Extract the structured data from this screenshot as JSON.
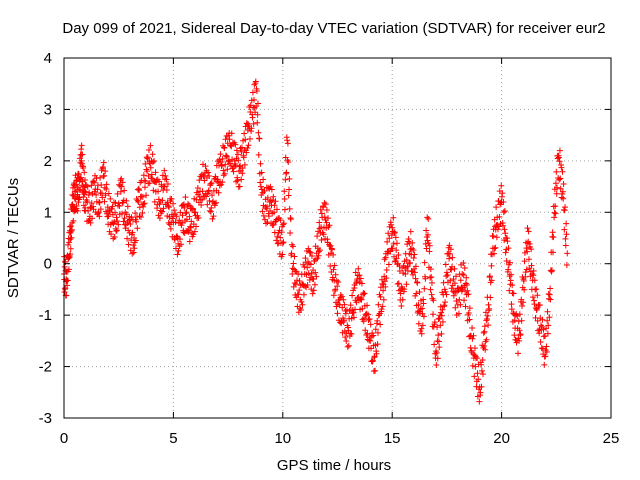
{
  "chart_data": {
    "type": "scatter",
    "title": "Day 099 of 2021, Sidereal Day-to-day VTEC variation (SDTVAR) for receiver eur2",
    "xlabel": "GPS time / hours",
    "ylabel": "SDTVAR / TECUs",
    "xlim": [
      0,
      25
    ],
    "ylim": [
      -3,
      4
    ],
    "xticks": [
      0,
      5,
      10,
      15,
      20,
      25
    ],
    "yticks": [
      -3,
      -2,
      -1,
      0,
      1,
      2,
      3,
      4
    ],
    "grid": true,
    "marker": "+",
    "color": "#ff0000",
    "series": [
      {
        "name": "SDTVAR",
        "points": [
          [
            0.0,
            -0.2
          ],
          [
            0.1,
            -0.3
          ],
          [
            0.2,
            0.1
          ],
          [
            0.3,
            0.6
          ],
          [
            0.4,
            1.1
          ],
          [
            0.5,
            1.4
          ],
          [
            0.6,
            1.3
          ],
          [
            0.7,
            1.6
          ],
          [
            0.8,
            2.0
          ],
          [
            0.9,
            1.5
          ],
          [
            1.0,
            1.2
          ],
          [
            1.2,
            1.1
          ],
          [
            1.4,
            1.4
          ],
          [
            1.6,
            1.2
          ],
          [
            1.8,
            1.7
          ],
          [
            2.0,
            1.1
          ],
          [
            2.2,
            0.8
          ],
          [
            2.4,
            0.9
          ],
          [
            2.6,
            1.4
          ],
          [
            2.8,
            1.0
          ],
          [
            3.0,
            0.6
          ],
          [
            3.2,
            0.5
          ],
          [
            3.4,
            1.2
          ],
          [
            3.6,
            1.3
          ],
          [
            3.8,
            1.8
          ],
          [
            4.0,
            2.0
          ],
          [
            4.2,
            1.4
          ],
          [
            4.4,
            1.2
          ],
          [
            4.6,
            1.5
          ],
          [
            4.8,
            1.1
          ],
          [
            5.0,
            0.8
          ],
          [
            5.2,
            0.5
          ],
          [
            5.4,
            0.8
          ],
          [
            5.6,
            1.0
          ],
          [
            5.8,
            0.7
          ],
          [
            6.0,
            1.0
          ],
          [
            6.2,
            1.3
          ],
          [
            6.4,
            1.7
          ],
          [
            6.6,
            1.4
          ],
          [
            6.8,
            1.2
          ],
          [
            7.0,
            1.6
          ],
          [
            7.2,
            1.9
          ],
          [
            7.4,
            2.1
          ],
          [
            7.6,
            2.3
          ],
          [
            7.8,
            2.0
          ],
          [
            8.0,
            1.8
          ],
          [
            8.2,
            2.1
          ],
          [
            8.4,
            2.6
          ],
          [
            8.6,
            2.9
          ],
          [
            8.8,
            3.4
          ],
          [
            9.0,
            1.5
          ],
          [
            9.2,
            1.1
          ],
          [
            9.4,
            1.2
          ],
          [
            9.6,
            1.0
          ],
          [
            9.8,
            0.6
          ],
          [
            10.0,
            0.4
          ],
          [
            10.2,
            2.4
          ],
          [
            10.4,
            0.2
          ],
          [
            10.6,
            -0.4
          ],
          [
            10.8,
            -0.7
          ],
          [
            11.0,
            -0.2
          ],
          [
            11.2,
            0.0
          ],
          [
            11.4,
            -0.3
          ],
          [
            11.6,
            0.3
          ],
          [
            11.8,
            0.9
          ],
          [
            12.0,
            0.8
          ],
          [
            12.2,
            0.2
          ],
          [
            12.4,
            -0.5
          ],
          [
            12.6,
            -0.8
          ],
          [
            12.8,
            -1.1
          ],
          [
            13.0,
            -1.3
          ],
          [
            13.2,
            -0.9
          ],
          [
            13.4,
            -0.3
          ],
          [
            13.6,
            -0.7
          ],
          [
            13.8,
            -1.0
          ],
          [
            14.0,
            -1.5
          ],
          [
            14.2,
            -1.8
          ],
          [
            14.4,
            -1.0
          ],
          [
            14.6,
            -0.4
          ],
          [
            14.8,
            0.2
          ],
          [
            15.0,
            0.7
          ],
          [
            15.2,
            0.1
          ],
          [
            15.4,
            -0.5
          ],
          [
            15.6,
            -0.2
          ],
          [
            15.8,
            0.4
          ],
          [
            16.0,
            -0.1
          ],
          [
            16.2,
            -0.8
          ],
          [
            16.4,
            -1.2
          ],
          [
            16.6,
            0.9
          ],
          [
            16.8,
            -0.6
          ],
          [
            17.0,
            -1.7
          ],
          [
            17.2,
            -1.2
          ],
          [
            17.4,
            -0.5
          ],
          [
            17.6,
            0.1
          ],
          [
            17.8,
            -0.3
          ],
          [
            18.0,
            -0.8
          ],
          [
            18.2,
            -0.2
          ],
          [
            18.4,
            -0.6
          ],
          [
            18.6,
            -1.4
          ],
          [
            18.8,
            -2.0
          ],
          [
            19.0,
            -2.4
          ],
          [
            19.2,
            -1.6
          ],
          [
            19.4,
            -0.8
          ],
          [
            19.6,
            0.3
          ],
          [
            19.8,
            0.9
          ],
          [
            20.0,
            1.2
          ],
          [
            20.2,
            0.5
          ],
          [
            20.4,
            -0.4
          ],
          [
            20.6,
            -1.1
          ],
          [
            20.8,
            -1.5
          ],
          [
            21.0,
            -0.3
          ],
          [
            21.2,
            0.4
          ],
          [
            21.4,
            -0.2
          ],
          [
            21.6,
            -0.9
          ],
          [
            21.8,
            -1.2
          ],
          [
            22.0,
            -1.8
          ],
          [
            22.2,
            -0.6
          ],
          [
            22.4,
            0.9
          ],
          [
            22.6,
            2.1
          ],
          [
            22.8,
            1.4
          ],
          [
            23.0,
            0.2
          ]
        ]
      }
    ]
  }
}
